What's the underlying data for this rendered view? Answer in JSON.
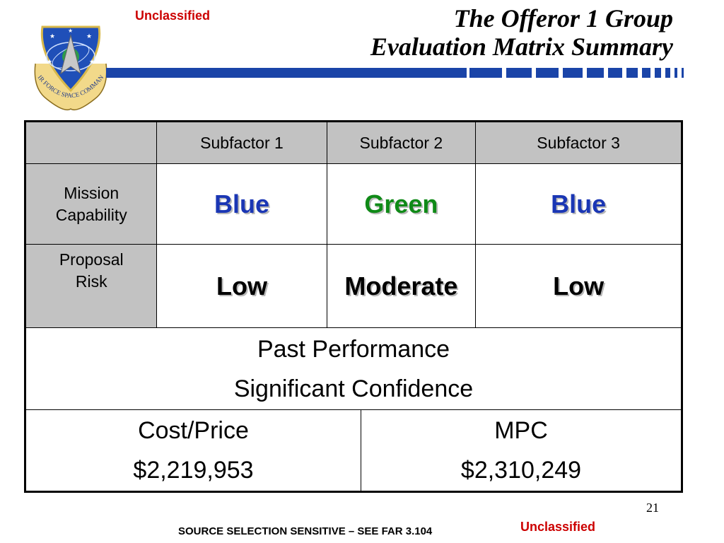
{
  "header": {
    "classification": "Unclassified",
    "title_line1": "The Offeror 1 Group",
    "title_line2": "Evaluation Matrix Summary",
    "logo_text": "AIR FORCE SPACE COMMAND"
  },
  "colors": {
    "accent_blue": "#1a44a8",
    "classification_red": "#cc0000",
    "rating_blue": "#1a36b4",
    "rating_green": "#0f8a17"
  },
  "matrix": {
    "columns": [
      "Subfactor 1",
      "Subfactor 2",
      "Subfactor 3"
    ],
    "rows": [
      {
        "label_line1": "Mission",
        "label_line2": "Capability",
        "values": [
          "Blue",
          "Green",
          "Blue"
        ]
      },
      {
        "label_line1": "Proposal",
        "label_line2": "Risk",
        "values": [
          "Low",
          "Moderate",
          "Low"
        ]
      }
    ],
    "past_performance": {
      "label": "Past Performance",
      "value": "Significant Confidence"
    },
    "cost": {
      "label": "Cost/Price",
      "value": "$2,219,953"
    },
    "mpc": {
      "label": "MPC",
      "value": "$2,310,249"
    }
  },
  "footer": {
    "page_number": "21",
    "source_notice": "SOURCE SELECTION SENSITIVE – SEE FAR 3.104",
    "classification": "Unclassified"
  }
}
